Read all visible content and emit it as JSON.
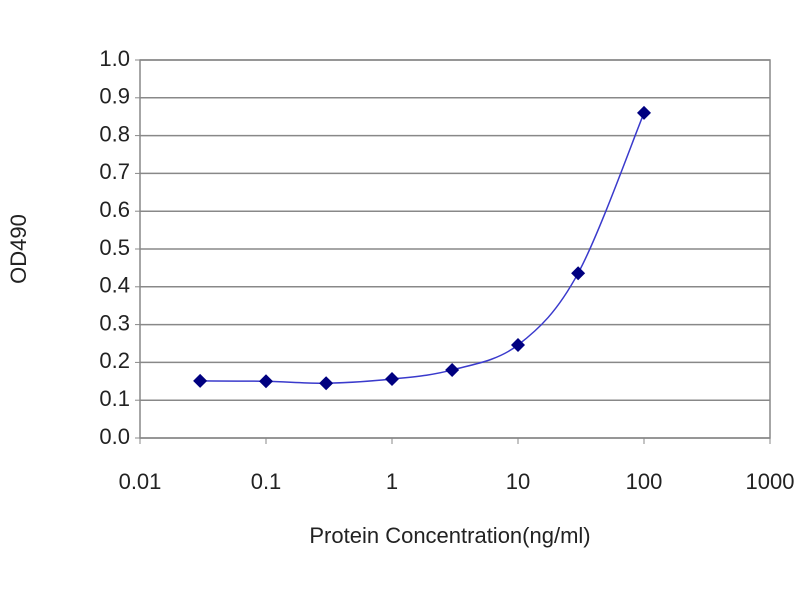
{
  "chart_data": {
    "type": "scatter",
    "x_label": "Protein Concentration(ng/ml)",
    "y_label": "OD490",
    "x": [
      0.03,
      0.1,
      0.3,
      1,
      3,
      10,
      30,
      100
    ],
    "values": [
      0.151,
      0.15,
      0.145,
      0.156,
      0.18,
      0.246,
      0.436,
      0.86
    ],
    "color": "#000080",
    "line_color": "#3a3acc",
    "fit_line": true,
    "xscale": "log",
    "xlim": [
      0.01,
      1000
    ],
    "xticks": [
      0.01,
      0.1,
      1,
      10,
      100,
      1000
    ],
    "ylim": [
      0,
      1
    ],
    "yticks": [
      {
        "value": 0,
        "label": "0.0"
      },
      0.1,
      0.2,
      0.3,
      0.4,
      0.5,
      0.6,
      0.7,
      0.8,
      0.9,
      {
        "value": 1,
        "label": "1.0"
      }
    ],
    "grid": true
  }
}
